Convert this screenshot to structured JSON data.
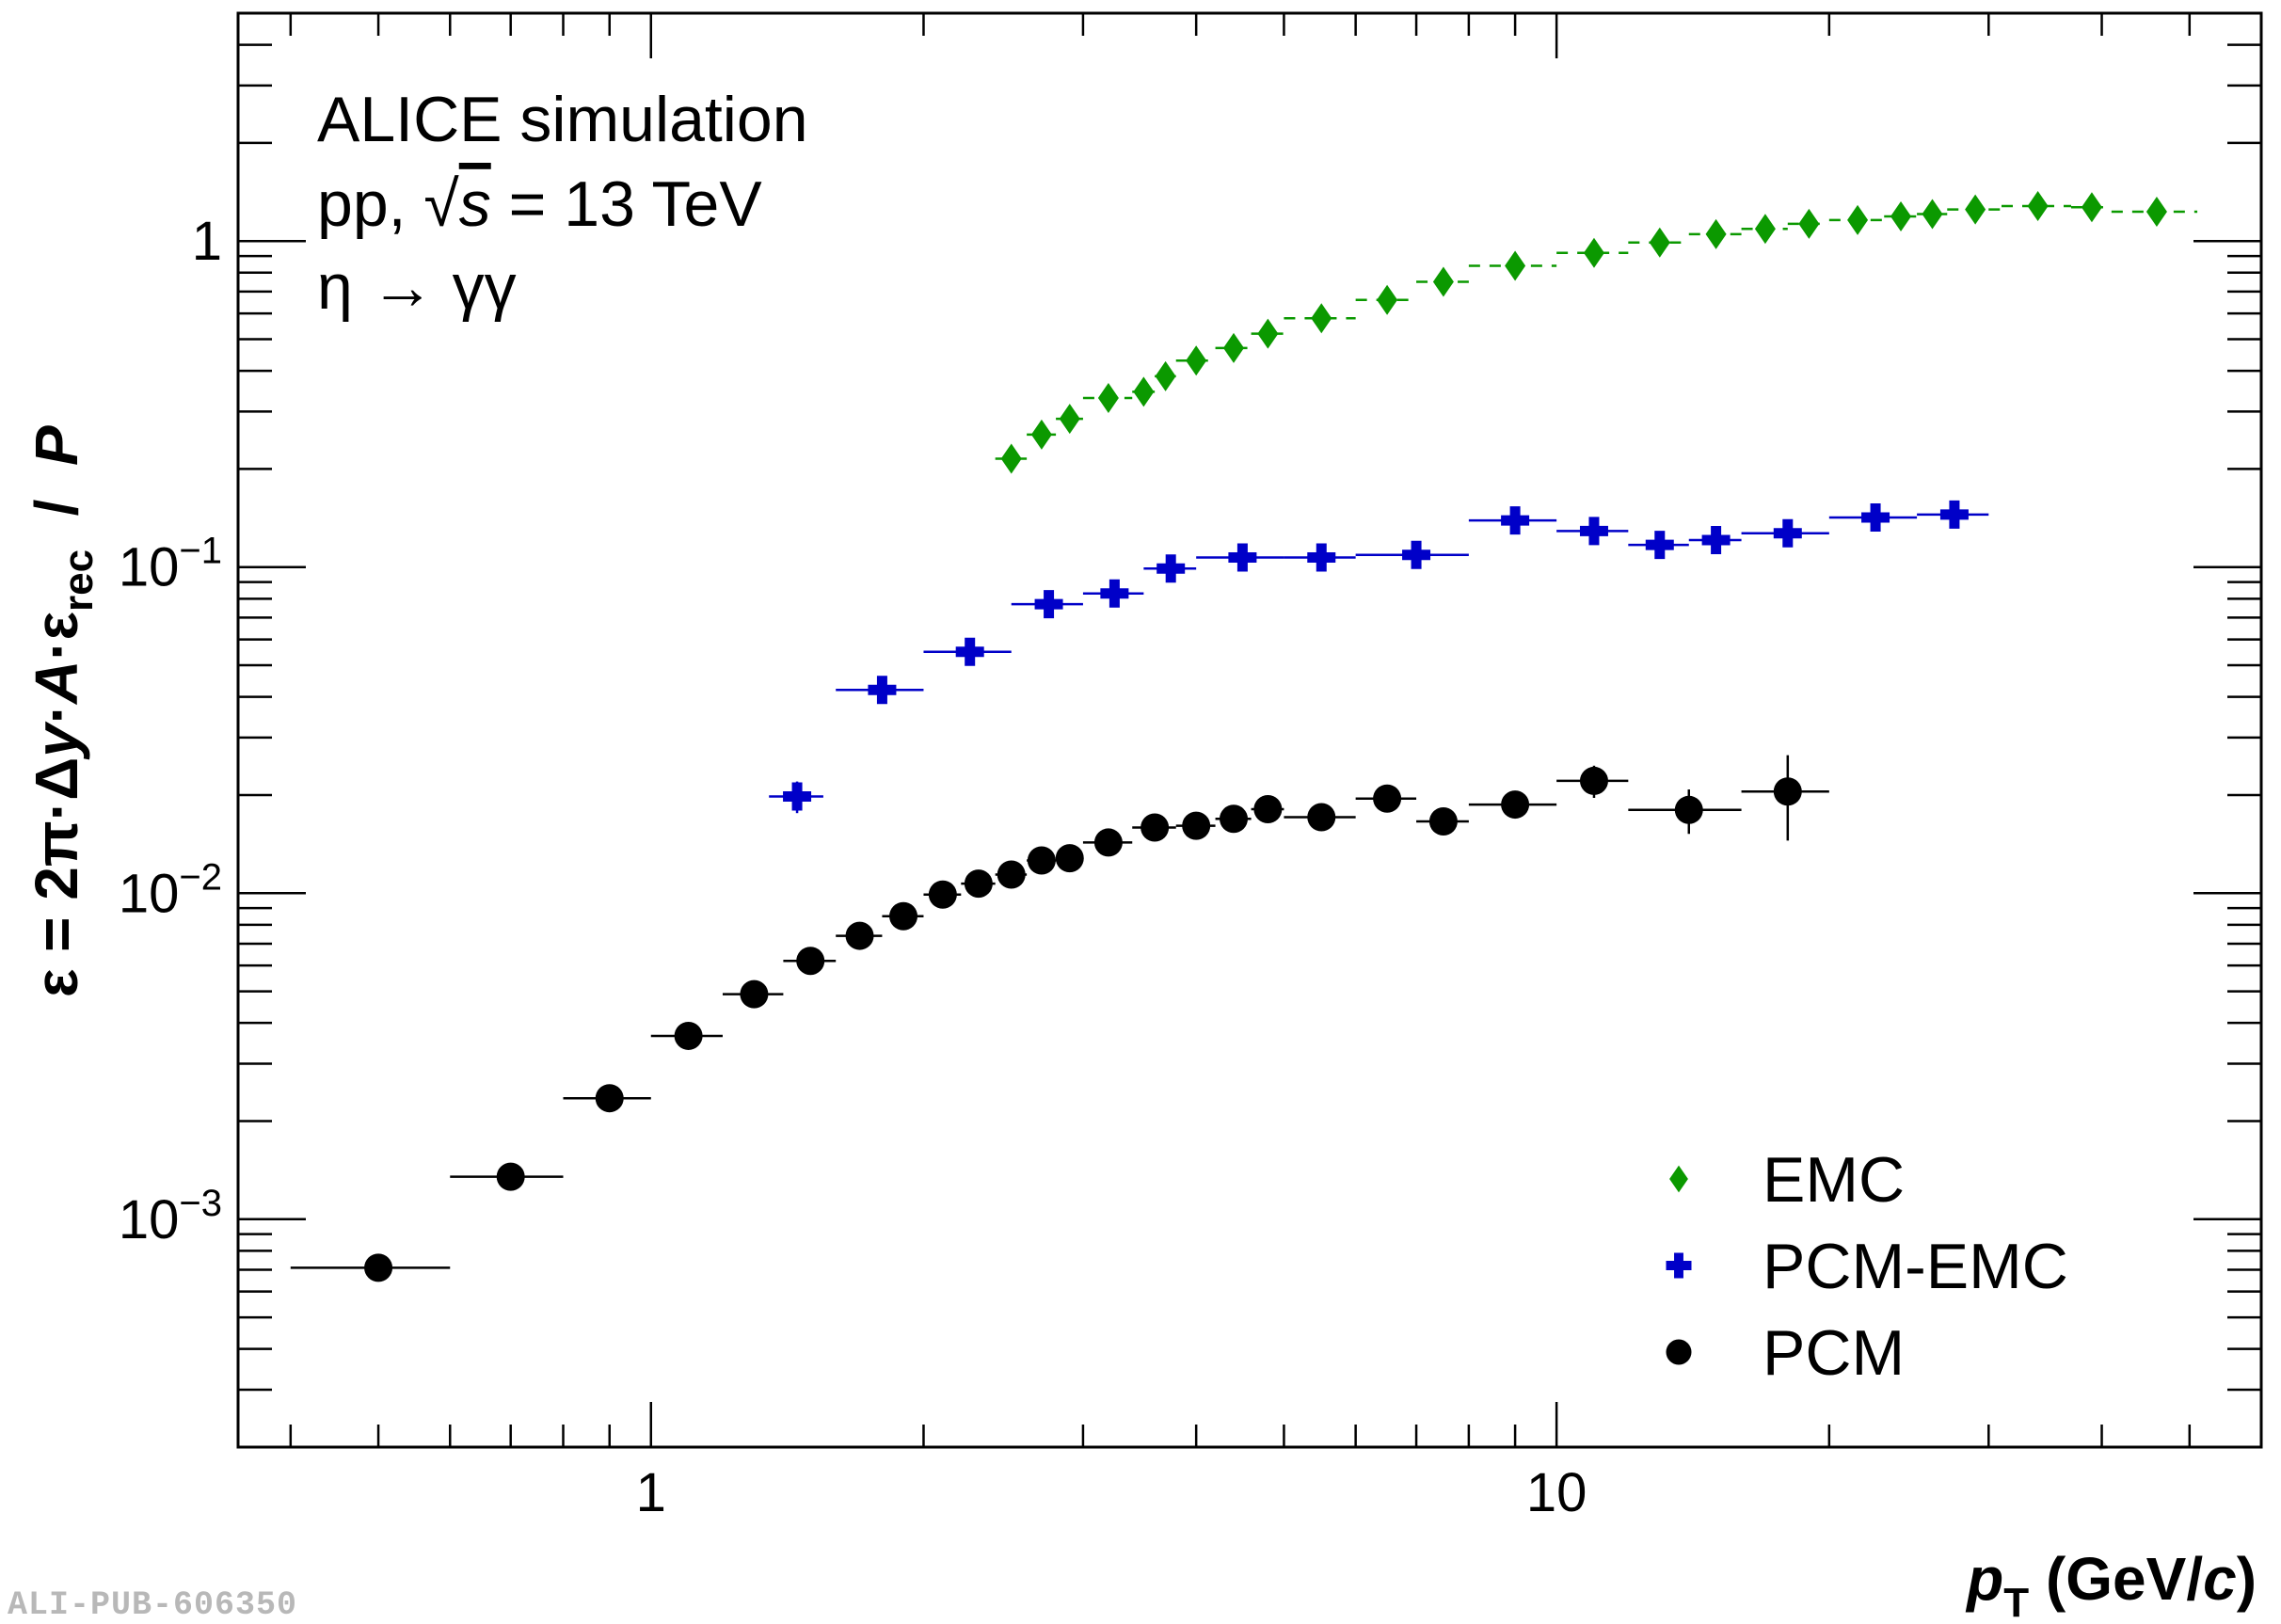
{
  "annotations": {
    "line1": "ALICE simulation",
    "line2_pre": "pp, ",
    "line2_sqrt": "√",
    "line2_s": "s",
    "line2_post": " = 13 TeV",
    "line3": "η → γγ"
  },
  "y_label": {
    "pre": "ε = 2π·Δ",
    "y": "y",
    "dot": "·",
    "A": "A",
    "eps": "·ε",
    "sub": "rec",
    "slash": "  /  ",
    "P": "P"
  },
  "x_label": {
    "p": "p",
    "sub": "T",
    "units_pre": " (GeV/",
    "c": "c",
    "units_post": ")"
  },
  "pub_id": "ALI-PUB-606350",
  "chart_data": {
    "type": "scatter",
    "x_scale": "log",
    "y_scale": "log",
    "xlim": [
      0.35,
      60
    ],
    "ylim": [
      0.0002,
      5
    ],
    "x_ticks": [
      {
        "value": 1,
        "label": "1"
      },
      {
        "value": 10,
        "label": "10"
      }
    ],
    "y_ticks": [
      {
        "value": 1,
        "base": "1",
        "exp": ""
      },
      {
        "value": 0.1,
        "base": "10",
        "exp": "−1"
      },
      {
        "value": 0.01,
        "base": "10",
        "exp": "−2"
      },
      {
        "value": 0.001,
        "base": "10",
        "exp": "−3"
      }
    ],
    "legend_position": "bottom-right",
    "series": [
      {
        "name": "EMC",
        "marker": "diamond",
        "color": "#0b9900",
        "points": [
          {
            "x": 2.5,
            "y": 0.215,
            "xlo": 2.4,
            "xhi": 2.6
          },
          {
            "x": 2.7,
            "y": 0.255,
            "xlo": 2.6,
            "xhi": 2.8
          },
          {
            "x": 2.9,
            "y": 0.285,
            "xlo": 2.8,
            "xhi": 3.0
          },
          {
            "x": 3.2,
            "y": 0.33,
            "xlo": 3.0,
            "xhi": 3.4
          },
          {
            "x": 3.5,
            "y": 0.345,
            "xlo": 3.4,
            "xhi": 3.6
          },
          {
            "x": 3.7,
            "y": 0.385,
            "xlo": 3.6,
            "xhi": 3.8
          },
          {
            "x": 4.0,
            "y": 0.43,
            "xlo": 3.8,
            "xhi": 4.2
          },
          {
            "x": 4.4,
            "y": 0.47,
            "xlo": 4.2,
            "xhi": 4.6
          },
          {
            "x": 4.8,
            "y": 0.52,
            "xlo": 4.6,
            "xhi": 5.0
          },
          {
            "x": 5.5,
            "y": 0.58,
            "xlo": 5.0,
            "xhi": 6.0
          },
          {
            "x": 6.5,
            "y": 0.66,
            "xlo": 6.0,
            "xhi": 7.0
          },
          {
            "x": 7.5,
            "y": 0.75,
            "xlo": 7.0,
            "xhi": 8.0
          },
          {
            "x": 9.0,
            "y": 0.84,
            "xlo": 8.0,
            "xhi": 10.0
          },
          {
            "x": 11.0,
            "y": 0.92,
            "xlo": 10.0,
            "xhi": 12.0
          },
          {
            "x": 13.0,
            "y": 0.99,
            "xlo": 12.0,
            "xhi": 14.0
          },
          {
            "x": 15.0,
            "y": 1.05,
            "xlo": 14.0,
            "xhi": 16.0
          },
          {
            "x": 17.0,
            "y": 1.09,
            "xlo": 16.0,
            "xhi": 18.0
          },
          {
            "x": 19.0,
            "y": 1.13,
            "xlo": 18.0,
            "xhi": 20.0
          },
          {
            "x": 21.5,
            "y": 1.16,
            "xlo": 20.0,
            "xhi": 23.0
          },
          {
            "x": 24.0,
            "y": 1.19,
            "xlo": 23.0,
            "xhi": 25.0
          },
          {
            "x": 26.0,
            "y": 1.21,
            "xlo": 25.0,
            "xhi": 27.0
          },
          {
            "x": 29.0,
            "y": 1.25,
            "xlo": 27.0,
            "xhi": 31.0
          },
          {
            "x": 34.0,
            "y": 1.28,
            "xlo": 31.0,
            "xhi": 37.0
          },
          {
            "x": 39.0,
            "y": 1.27,
            "xlo": 37.0,
            "xhi": 41.0
          },
          {
            "x": 46.0,
            "y": 1.23,
            "xlo": 41.0,
            "xhi": 51.0
          }
        ]
      },
      {
        "name": "PCM-EMC",
        "marker": "cross",
        "color": "#0000c8",
        "points": [
          {
            "x": 1.45,
            "y": 0.0198,
            "xlo": 1.35,
            "xhi": 1.55,
            "yerr": 0.0022
          },
          {
            "x": 1.8,
            "y": 0.042,
            "xlo": 1.6,
            "xhi": 2.0,
            "yerr": 0.002
          },
          {
            "x": 2.25,
            "y": 0.055,
            "xlo": 2.0,
            "xhi": 2.5,
            "yerr": 0.002
          },
          {
            "x": 2.75,
            "y": 0.077,
            "xlo": 2.5,
            "xhi": 3.0,
            "yerr": 0.003
          },
          {
            "x": 3.25,
            "y": 0.083,
            "xlo": 3.0,
            "xhi": 3.5,
            "yerr": 0.003
          },
          {
            "x": 3.75,
            "y": 0.099,
            "xlo": 3.5,
            "xhi": 4.0,
            "yerr": 0.004
          },
          {
            "x": 4.5,
            "y": 0.107,
            "xlo": 4.0,
            "xhi": 5.0,
            "yerr": 0.004
          },
          {
            "x": 5.5,
            "y": 0.107,
            "xlo": 5.0,
            "xhi": 6.0,
            "yerr": 0.004
          },
          {
            "x": 7.0,
            "y": 0.109,
            "xlo": 6.0,
            "xhi": 8.0,
            "yerr": 0.004
          },
          {
            "x": 9.0,
            "y": 0.139,
            "xlo": 8.0,
            "xhi": 10.0,
            "yerr": 0.006
          },
          {
            "x": 11.0,
            "y": 0.129,
            "xlo": 10.0,
            "xhi": 12.0,
            "yerr": 0.006
          },
          {
            "x": 13.0,
            "y": 0.117,
            "xlo": 12.0,
            "xhi": 14.0,
            "yerr": 0.006
          },
          {
            "x": 15.0,
            "y": 0.121,
            "xlo": 14.0,
            "xhi": 16.0,
            "yerr": 0.006
          },
          {
            "x": 18.0,
            "y": 0.127,
            "xlo": 16.0,
            "xhi": 20.0,
            "yerr": 0.006
          },
          {
            "x": 22.5,
            "y": 0.142,
            "xlo": 20.0,
            "xhi": 25.0,
            "yerr": 0.007
          },
          {
            "x": 27.5,
            "y": 0.145,
            "xlo": 25.0,
            "xhi": 30.0,
            "yerr": 0.007
          }
        ]
      },
      {
        "name": "PCM",
        "marker": "circle",
        "color": "#000000",
        "points": [
          {
            "x": 0.5,
            "y": 0.00071,
            "xlo": 0.4,
            "xhi": 0.6
          },
          {
            "x": 0.7,
            "y": 0.00135,
            "xlo": 0.6,
            "xhi": 0.8
          },
          {
            "x": 0.9,
            "y": 0.00235,
            "xlo": 0.8,
            "xhi": 1.0
          },
          {
            "x": 1.1,
            "y": 0.00365,
            "xlo": 1.0,
            "xhi": 1.2
          },
          {
            "x": 1.3,
            "y": 0.0049,
            "xlo": 1.2,
            "xhi": 1.4
          },
          {
            "x": 1.5,
            "y": 0.0062,
            "xlo": 1.4,
            "xhi": 1.6
          },
          {
            "x": 1.7,
            "y": 0.0074,
            "xlo": 1.6,
            "xhi": 1.8
          },
          {
            "x": 1.9,
            "y": 0.0085,
            "xlo": 1.8,
            "xhi": 2.0
          },
          {
            "x": 2.1,
            "y": 0.0099,
            "xlo": 2.0,
            "xhi": 2.2
          },
          {
            "x": 2.3,
            "y": 0.0107,
            "xlo": 2.2,
            "xhi": 2.4
          },
          {
            "x": 2.5,
            "y": 0.0114,
            "xlo": 2.4,
            "xhi": 2.6
          },
          {
            "x": 2.7,
            "y": 0.0126,
            "xlo": 2.6,
            "xhi": 2.8
          },
          {
            "x": 2.9,
            "y": 0.0128,
            "xlo": 2.8,
            "xhi": 3.0
          },
          {
            "x": 3.2,
            "y": 0.0143,
            "xlo": 3.0,
            "xhi": 3.4
          },
          {
            "x": 3.6,
            "y": 0.0159,
            "xlo": 3.4,
            "xhi": 3.8
          },
          {
            "x": 4.0,
            "y": 0.0161,
            "xlo": 3.8,
            "xhi": 4.2
          },
          {
            "x": 4.4,
            "y": 0.0169,
            "xlo": 4.2,
            "xhi": 4.6
          },
          {
            "x": 4.8,
            "y": 0.0181,
            "xlo": 4.6,
            "xhi": 5.0
          },
          {
            "x": 5.5,
            "y": 0.0171,
            "xlo": 5.0,
            "xhi": 6.0
          },
          {
            "x": 6.5,
            "y": 0.0195,
            "xlo": 6.0,
            "xhi": 7.0
          },
          {
            "x": 7.5,
            "y": 0.0166,
            "xlo": 7.0,
            "xhi": 8.0
          },
          {
            "x": 9.0,
            "y": 0.0187,
            "xlo": 8.0,
            "xhi": 10.0
          },
          {
            "x": 11.0,
            "y": 0.0221,
            "xlo": 10.0,
            "xhi": 12.0,
            "yerr": 0.0025
          },
          {
            "x": 14.0,
            "y": 0.018,
            "xlo": 12.0,
            "xhi": 16.0,
            "yerr": 0.0028
          },
          {
            "x": 18.0,
            "y": 0.0205,
            "xlo": 16.0,
            "xhi": 20.0,
            "yerr": 0.006
          }
        ]
      }
    ]
  }
}
